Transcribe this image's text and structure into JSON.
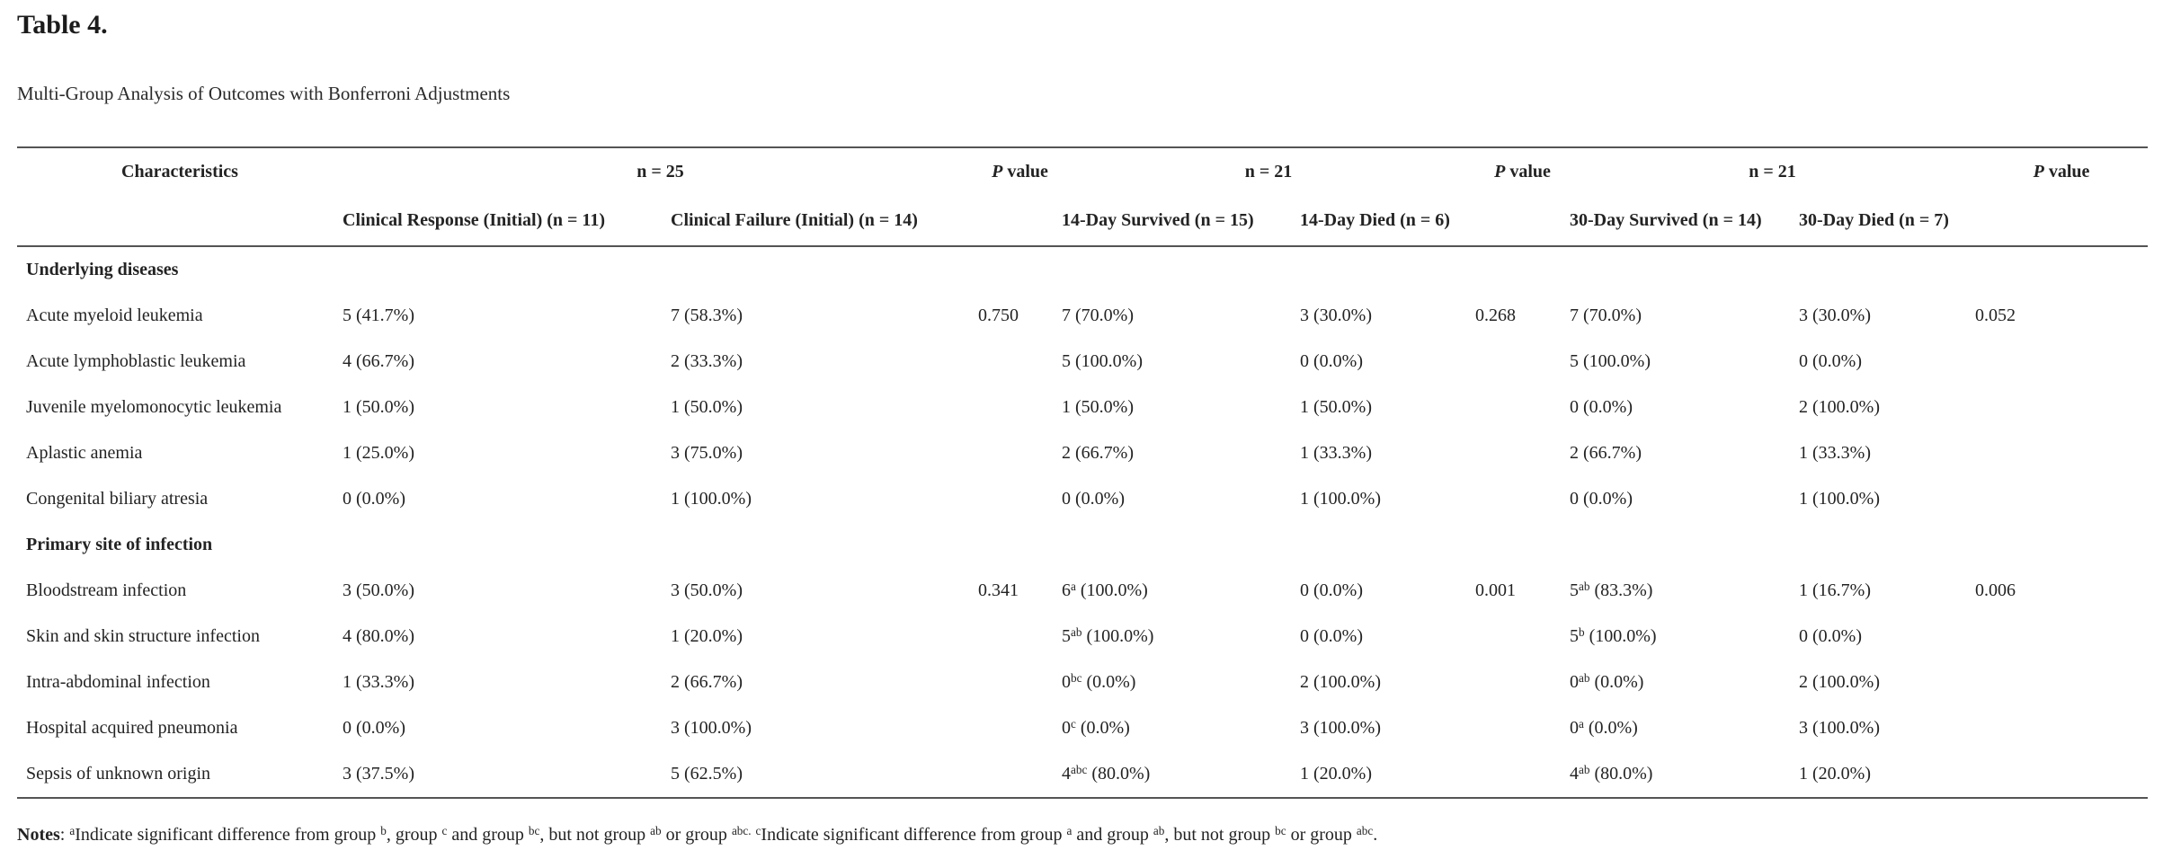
{
  "page": {
    "title": "Table 4.",
    "subtitle": "Multi-Group Analysis of Outcomes with Bonferroni Adjustments"
  },
  "table": {
    "header_row1": [
      {
        "label": "Characteristics"
      },
      {
        "label": "n = 25"
      },
      {
        "label": "//P// value"
      },
      {
        "label": "n = 21"
      },
      {
        "label": "//P// value"
      },
      {
        "label": "n = 21"
      },
      {
        "label": "//P// value"
      }
    ],
    "header_row2": [
      "",
      "Clinical Response (Initial) (n = 11)",
      "Clinical Failure (Initial) (n = 14)",
      "",
      "14-Day Survived (n = 15)",
      "14-Day Died (n = 6)",
      "",
      "30-Day Survived (n = 14)",
      "30-Day Died (n = 7)",
      ""
    ],
    "rows": [
      {
        "type": "section",
        "label": "Underlying diseases"
      },
      {
        "type": "data",
        "label": "Acute myeloid leukemia",
        "cells": [
          "5 (41.7%)",
          "7 (58.3%)",
          "0.750",
          "7 (70.0%)",
          "3 (30.0%)",
          "0.268",
          "7 (70.0%)",
          "3 (30.0%)",
          "0.052"
        ]
      },
      {
        "type": "data",
        "label": "Acute lymphoblastic leukemia",
        "cells": [
          "4 (66.7%)",
          "2 (33.3%)",
          "",
          "5 (100.0%)",
          "0 (0.0%)",
          "",
          "5 (100.0%)",
          "0 (0.0%)",
          ""
        ]
      },
      {
        "type": "data",
        "label": "Juvenile myelomonocytic leukemia",
        "cells": [
          "1 (50.0%)",
          "1 (50.0%)",
          "",
          "1 (50.0%)",
          "1 (50.0%)",
          "",
          "0 (0.0%)",
          "2 (100.0%)",
          ""
        ]
      },
      {
        "type": "data",
        "label": "Aplastic anemia",
        "cells": [
          "1 (25.0%)",
          "3 (75.0%)",
          "",
          "2 (66.7%)",
          "1 (33.3%)",
          "",
          "2 (66.7%)",
          "1 (33.3%)",
          ""
        ]
      },
      {
        "type": "data",
        "label": "Congenital biliary atresia",
        "cells": [
          "0 (0.0%)",
          "1 (100.0%)",
          "",
          "0 (0.0%)",
          "1 (100.0%)",
          "",
          "0 (0.0%)",
          "1 (100.0%)",
          ""
        ]
      },
      {
        "type": "section",
        "label": "Primary site of infection"
      },
      {
        "type": "data",
        "label": "Bloodstream infection",
        "cells": [
          "3 (50.0%)",
          "3 (50.0%)",
          "0.341",
          "6^{a} (100.0%)",
          "0 (0.0%)",
          "0.001",
          "5^{ab} (83.3%)",
          "1 (16.7%)",
          "0.006"
        ]
      },
      {
        "type": "data",
        "label": "Skin and skin structure infection",
        "cells": [
          "4 (80.0%)",
          "1 (20.0%)",
          "",
          "5^{ab} (100.0%)",
          "0 (0.0%)",
          "",
          "5^{b} (100.0%)",
          "0 (0.0%)",
          ""
        ]
      },
      {
        "type": "data",
        "label": "Intra-abdominal infection",
        "cells": [
          "1 (33.3%)",
          "2 (66.7%)",
          "",
          "0^{bc} (0.0%)",
          "2 (100.0%)",
          "",
          "0^{ab} (0.0%)",
          "2 (100.0%)",
          ""
        ]
      },
      {
        "type": "data",
        "label": "Hospital acquired pneumonia",
        "cells": [
          "0 (0.0%)",
          "3 (100.0%)",
          "",
          "0^{c} (0.0%)",
          "3 (100.0%)",
          "",
          "0^{a} (0.0%)",
          "3 (100.0%)",
          ""
        ]
      },
      {
        "type": "data",
        "label": "Sepsis of unknown origin",
        "cells": [
          "3 (37.5%)",
          "5 (62.5%)",
          "",
          "4^{abc} (80.0%)",
          "1 (20.0%)",
          "",
          "4^{ab} (80.0%)",
          "1 (20.0%)",
          ""
        ]
      }
    ]
  },
  "notes": {
    "label": "Notes",
    "text": ": ^{a}Indicate significant difference from group ^{b}, group ^{c} and group ^{bc}, but not group ^{ab} or group ^{abc.} ^{c}Indicate significant difference from group ^{a} and group ^{ab}, but not group ^{bc} or group ^{abc}."
  }
}
